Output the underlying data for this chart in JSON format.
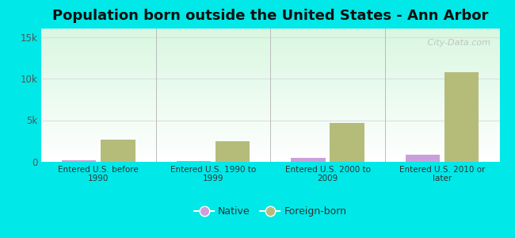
{
  "title": "Population born outside the United States - Ann Arbor",
  "categories": [
    "Entered U.S. before\n1990",
    "Entered U.S. 1990 to\n1999",
    "Entered U.S. 2000 to\n2009",
    "Entered U.S. 2010 or\nlater"
  ],
  "native_values": [
    200,
    130,
    450,
    900
  ],
  "foreign_values": [
    2700,
    2500,
    4700,
    10800
  ],
  "native_color": "#c9a0dc",
  "foreign_color": "#b5bc7a",
  "background_outer": "#00e8e8",
  "ylim": [
    0,
    16000
  ],
  "yticks": [
    0,
    5000,
    10000,
    15000
  ],
  "ytick_labels": [
    "0",
    "5k",
    "10k",
    "15k"
  ],
  "bar_width": 0.3,
  "title_fontsize": 13,
  "watermark": "   City-Data.com",
  "grid_color": "#dddddd",
  "separator_color": "#bbbbbb"
}
